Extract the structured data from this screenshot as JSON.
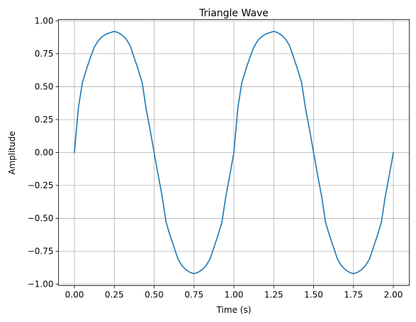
{
  "chart_data": {
    "type": "line",
    "title": "Triangle Wave",
    "xlabel": "Time (s)",
    "ylabel": "Amplitude",
    "xlim": [
      -0.1,
      2.1
    ],
    "ylim": [
      -1.01,
      1.01
    ],
    "grid": true,
    "line_color": "#1f77b4",
    "x_ticks": [
      0.0,
      0.25,
      0.5,
      0.75,
      1.0,
      1.25,
      1.5,
      1.75,
      2.0
    ],
    "x_tick_labels": [
      "0.00",
      "0.25",
      "0.50",
      "0.75",
      "1.00",
      "1.25",
      "1.50",
      "1.75",
      "2.00"
    ],
    "y_ticks": [
      1.0,
      0.75,
      0.5,
      0.25,
      0.0,
      -0.25,
      -0.5,
      -0.75,
      -1.0
    ],
    "y_tick_labels": [
      "1.00",
      "0.75",
      "0.50",
      "0.25",
      "0.00",
      "−0.25",
      "−0.50",
      "−0.75",
      "−1.00"
    ],
    "series": [
      {
        "x": [
          0.0,
          0.025,
          0.05,
          0.075,
          0.1,
          0.125,
          0.15,
          0.175,
          0.2,
          0.225,
          0.25,
          0.275,
          0.3,
          0.325,
          0.35,
          0.375,
          0.4,
          0.425,
          0.45,
          0.475,
          0.5,
          0.525,
          0.55,
          0.575,
          0.6,
          0.625,
          0.65,
          0.675,
          0.7,
          0.725,
          0.75,
          0.775,
          0.8,
          0.825,
          0.85,
          0.875,
          0.9,
          0.925,
          0.95,
          0.975,
          1.0,
          1.025,
          1.05,
          1.075,
          1.1,
          1.125,
          1.15,
          1.175,
          1.2,
          1.225,
          1.25,
          1.275,
          1.3,
          1.325,
          1.35,
          1.375,
          1.4,
          1.425,
          1.45,
          1.475,
          1.5,
          1.525,
          1.55,
          1.575,
          1.6,
          1.625,
          1.65,
          1.675,
          1.7,
          1.725,
          1.75,
          1.775,
          1.8,
          1.825,
          1.85,
          1.875,
          1.9,
          1.925,
          1.95,
          1.975,
          2.0
        ],
        "y": [
          0.0,
          0.34,
          0.53,
          0.63,
          0.72,
          0.8,
          0.85,
          0.88,
          0.9,
          0.91,
          0.92,
          0.91,
          0.89,
          0.86,
          0.81,
          0.72,
          0.63,
          0.53,
          0.33,
          0.17,
          0.0,
          -0.17,
          -0.33,
          -0.53,
          -0.63,
          -0.72,
          -0.81,
          -0.86,
          -0.89,
          -0.91,
          -0.92,
          -0.91,
          -0.89,
          -0.86,
          -0.81,
          -0.72,
          -0.63,
          -0.53,
          -0.33,
          -0.17,
          0.0,
          0.34,
          0.53,
          0.63,
          0.72,
          0.8,
          0.85,
          0.88,
          0.9,
          0.91,
          0.92,
          0.91,
          0.89,
          0.86,
          0.81,
          0.72,
          0.63,
          0.53,
          0.33,
          0.17,
          0.0,
          -0.17,
          -0.33,
          -0.53,
          -0.63,
          -0.72,
          -0.81,
          -0.86,
          -0.89,
          -0.91,
          -0.92,
          -0.91,
          -0.89,
          -0.86,
          -0.81,
          -0.72,
          -0.63,
          -0.53,
          -0.33,
          -0.17,
          0.0
        ]
      }
    ]
  }
}
